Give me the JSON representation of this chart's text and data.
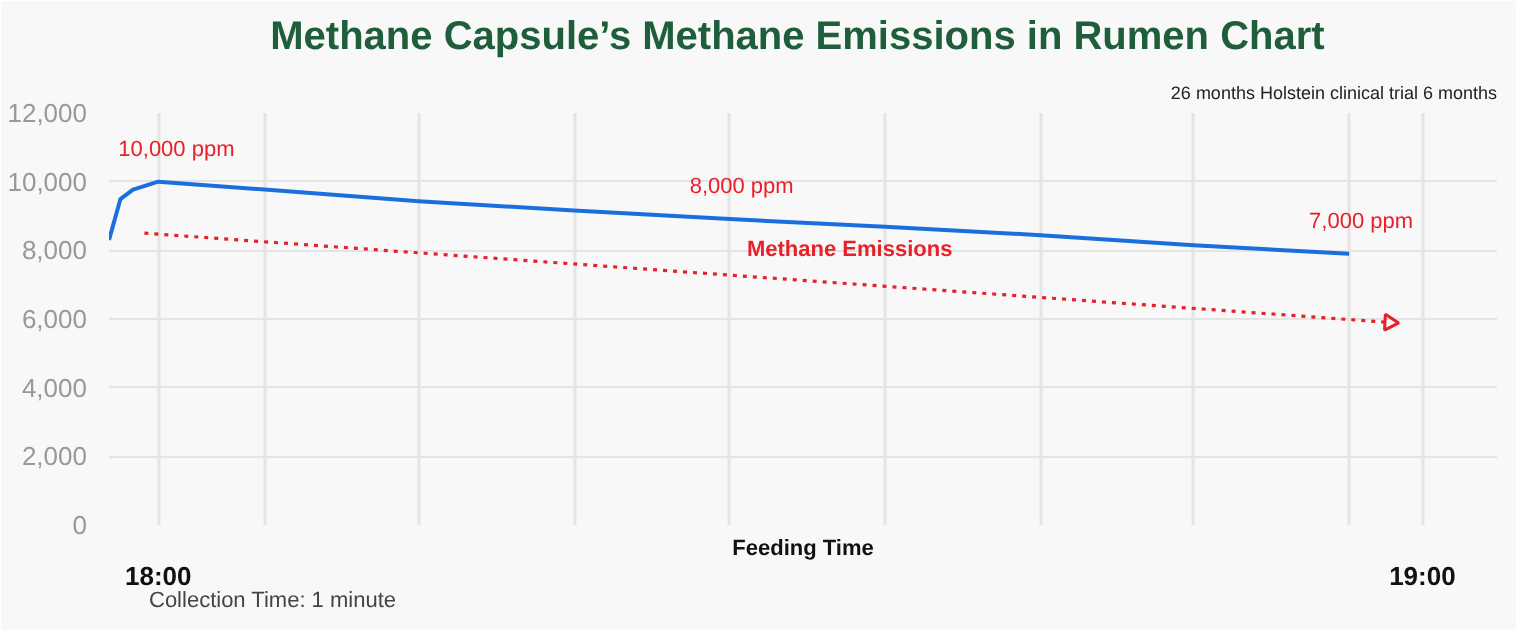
{
  "chart_data": {
    "type": "line",
    "title": "Methane Capsule’s Methane Emissions  in Rumen Chart",
    "subtitle": "26 months Holstein clinical trial 6 months",
    "xlabel": "Feeding Time",
    "x": [
      17.961,
      17.97,
      17.98,
      18.0,
      18.084,
      18.206,
      18.329,
      18.452,
      18.575,
      18.698,
      18.819,
      18.942
    ],
    "series": [
      {
        "color": "#1a6fdf",
        "values": [
          8300,
          9490,
          9770,
          10000,
          9770,
          9430,
          9160,
          8910,
          8690,
          8440,
          8150,
          7900
        ],
        "line_style": "solid"
      },
      {
        "name": "Methane Emissions",
        "color": "#e8202a",
        "x": [
          17.989,
          18.974
        ],
        "values": [
          8500,
          5900
        ],
        "line_style": "dotted"
      }
    ],
    "xlim": [
      17.961,
      19.059
    ],
    "xticks": [
      {
        "value": 17.961,
        "label": null
      },
      {
        "value": 18,
        "label": "18:00"
      },
      {
        "value": 18.084,
        "label": null
      },
      {
        "value": 18.206,
        "label": null
      },
      {
        "value": 18.329,
        "label": null
      },
      {
        "value": 18.452,
        "label": null
      },
      {
        "value": 18.575,
        "label": null
      },
      {
        "value": 18.698,
        "label": null
      },
      {
        "value": 18.819,
        "label": null
      },
      {
        "value": 18.942,
        "label": null
      },
      {
        "value": 19,
        "label": "19:00"
      }
    ],
    "ylim": [
      0,
      12000
    ],
    "yticks": [
      0,
      {
        "value": 2000,
        "label": "2,000"
      },
      {
        "value": 4000,
        "label": "4,000"
      },
      {
        "value": 6000,
        "label": "6,000"
      },
      {
        "value": 8000,
        "label": "8,000"
      },
      {
        "value": 10000,
        "label": "10,000"
      },
      {
        "value": 12000,
        "label": "12,000"
      }
    ],
    "grid": true,
    "annotations": [
      {
        "text": "10,000 ppm",
        "x": 18.0,
        "y": 10000
      },
      {
        "text": "8,000 ppm",
        "x": 18.452,
        "y": 8910
      },
      {
        "text": "7,000 ppm",
        "x": 18.942,
        "y": 7900
      },
      "Collection Time: 1 minute"
    ]
  }
}
